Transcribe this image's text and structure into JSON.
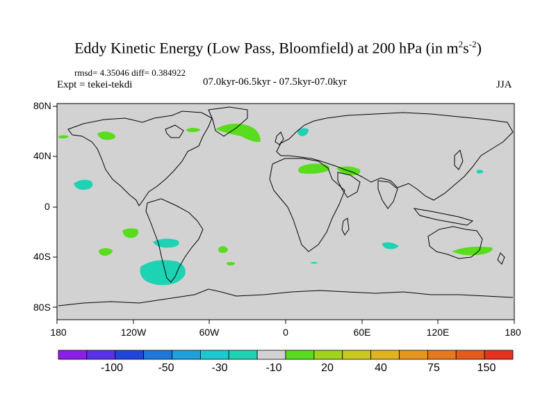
{
  "title": {
    "main": "Eddy Kinetic Energy (Low Pass, Bloomfield) at 200 hPa (in m",
    "sup1": "2",
    "mid": "s",
    "sup2": "-2",
    "end": ")"
  },
  "stats": "rmsd= 4.35046 diff= 0.384922",
  "expt": "Expt = tekei-tekdi",
  "period": "07.0kyr-06.5kyr - 07.5kyr-07.0kyr",
  "season": "JJA",
  "lat_labels": [
    "80N",
    "40N",
    "0",
    "40S",
    "80S"
  ],
  "lon_labels": [
    "180",
    "120W",
    "60W",
    "0",
    "60E",
    "120E",
    "180"
  ],
  "colorbar": {
    "colors": [
      "#8c1ee6",
      "#5a32e6",
      "#1e46dc",
      "#1e78dc",
      "#1ea0dc",
      "#1ec8d2",
      "#1ed2b4",
      "#d2d2d2",
      "#5adc1e",
      "#a0d21e",
      "#c8c81e",
      "#e1b41e",
      "#e6961e",
      "#e6781e",
      "#e65a1e",
      "#e6321e"
    ],
    "labels": [
      "-100",
      "-50",
      "-30",
      "-10",
      "20",
      "40",
      "75",
      "150"
    ]
  },
  "colors": {
    "ocean_land_bg": "#d2d2d2",
    "positive": "#5adc1e",
    "negative": "#1ed2b4"
  }
}
